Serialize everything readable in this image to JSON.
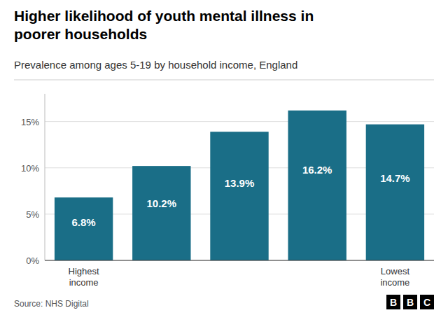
{
  "chart_data": {
    "type": "bar",
    "title": "Higher likelihood of youth mental illness in\npoorer households",
    "subtitle": "Prevalence among ages 5-19 by household income, England",
    "source": "Source: NHS Digital",
    "annotations": [
      "BBC"
    ],
    "categories": [
      "Highest\nincome",
      null,
      null,
      null,
      "Lowest\nincome"
    ],
    "values": [
      6.8,
      10.2,
      13.9,
      16.2,
      14.7
    ],
    "value_labels": [
      "6.8%",
      "10.2%",
      "13.9%",
      "16.2%",
      "14.7%"
    ],
    "data_labels": true,
    "color": "#1a6e87",
    "ylim": [
      0,
      18
    ],
    "yticks": [
      {
        "value": 0,
        "label": "0%"
      },
      {
        "value": 5,
        "label": "5%"
      },
      {
        "value": 10,
        "label": "10%"
      },
      {
        "value": 15,
        "label": "15%"
      }
    ],
    "grid": true
  }
}
